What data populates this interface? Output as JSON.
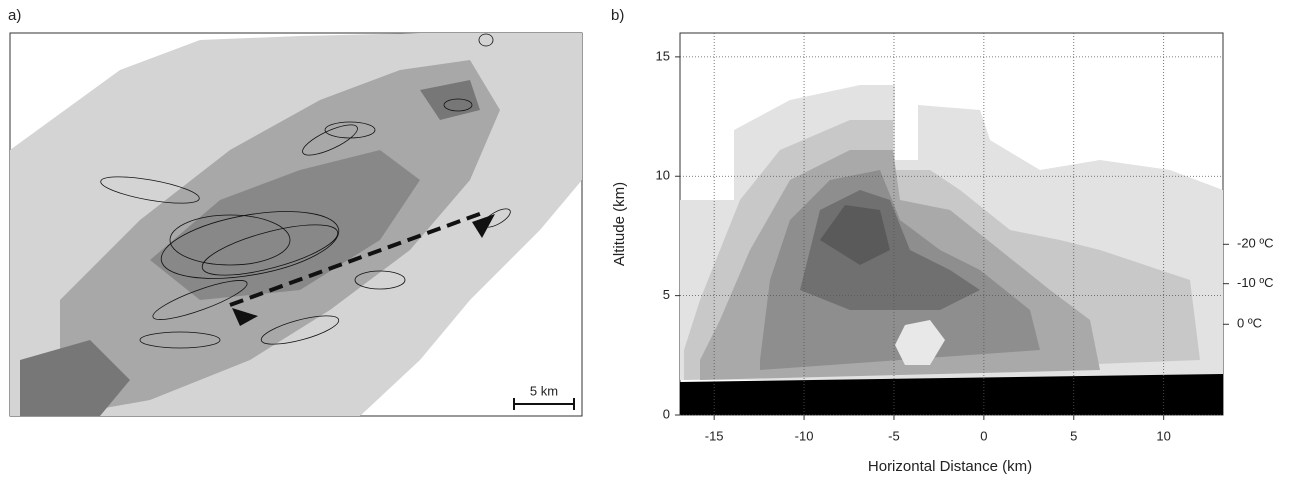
{
  "panel_a": {
    "label": "a)",
    "scale_bar": "5 km"
  },
  "chart_data": {
    "type": "contour",
    "label": "b)",
    "xlabel": "Horizontal Distance (km)",
    "ylabel": "Altitude (km)",
    "xlim": [
      -16.9,
      13.3
    ],
    "ylim": [
      0,
      16
    ],
    "xticks": [
      -15,
      -10,
      -5,
      0,
      5,
      10
    ],
    "yticks": [
      0,
      5,
      10,
      15
    ],
    "grid": true,
    "isotherms": [
      {
        "value": 7.15,
        "label": "-20 ºC"
      },
      {
        "value": 5.5,
        "label": "-10 ºC"
      },
      {
        "value": 3.8,
        "label": "0 ºC"
      }
    ]
  }
}
